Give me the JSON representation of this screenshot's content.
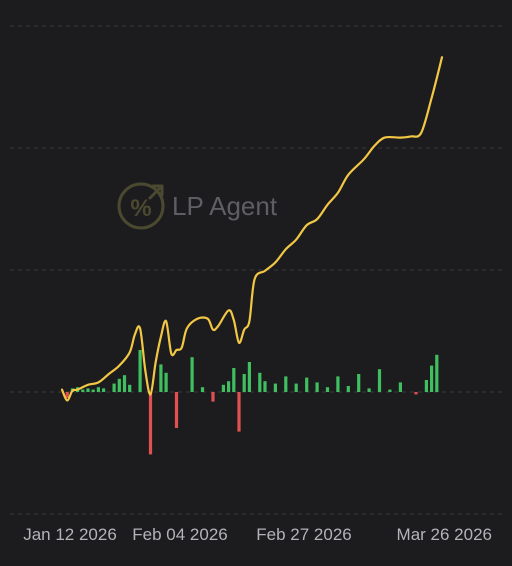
{
  "watermark": {
    "text": "LP Agent",
    "icon": "percent-trend-icon",
    "color": "#4b4a30"
  },
  "colors": {
    "background": "#1c1c1e",
    "line": "#f2c744",
    "positive_bar": "#3fbf5f",
    "negative_bar": "#e05252",
    "grid": "#3a3a3c",
    "tick_text": "#b3b3b8"
  },
  "chart_data": {
    "type": "line",
    "x_axis": {
      "type": "date",
      "tick_labels": [
        "Jan 12 2026",
        "Feb 04 2026",
        "Feb 27 2026",
        "Mar 26 2026"
      ]
    },
    "y_axis": {
      "labels_shown": false,
      "grid": "dashed horizontal",
      "zero_line": true
    },
    "series": [
      {
        "kind": "line",
        "color": "#f2c744",
        "points": [
          [
            "2026-01-12",
            0.2
          ],
          [
            "2026-01-13",
            -0.7
          ],
          [
            "2026-01-14",
            0.1
          ],
          [
            "2026-01-15",
            0.2
          ],
          [
            "2026-01-17",
            0.6
          ],
          [
            "2026-01-19",
            0.8
          ],
          [
            "2026-01-21",
            1.5
          ],
          [
            "2026-01-23",
            2.2
          ],
          [
            "2026-01-25",
            3.3
          ],
          [
            "2026-01-26",
            4.8
          ],
          [
            "2026-01-27",
            5.3
          ],
          [
            "2026-01-28",
            1.8
          ],
          [
            "2026-01-29",
            -0.2
          ],
          [
            "2026-01-30",
            2.5
          ],
          [
            "2026-01-31",
            4.6
          ],
          [
            "2026-02-01",
            5.9
          ],
          [
            "2026-02-02",
            3.2
          ],
          [
            "2026-02-03",
            3.5
          ],
          [
            "2026-02-04",
            3.7
          ],
          [
            "2026-02-05",
            5.3
          ],
          [
            "2026-02-07",
            6.1
          ],
          [
            "2026-02-09",
            6.1
          ],
          [
            "2026-02-10",
            5.2
          ],
          [
            "2026-02-11",
            5.5
          ],
          [
            "2026-02-13",
            6.8
          ],
          [
            "2026-02-14",
            6.0
          ],
          [
            "2026-02-15",
            4.1
          ],
          [
            "2026-02-16",
            5.2
          ],
          [
            "2026-02-17",
            5.9
          ],
          [
            "2026-02-18",
            9.4
          ],
          [
            "2026-02-20",
            10.1
          ],
          [
            "2026-02-22",
            10.8
          ],
          [
            "2026-02-24",
            11.9
          ],
          [
            "2026-02-26",
            12.7
          ],
          [
            "2026-02-28",
            13.9
          ],
          [
            "2026-03-02",
            14.4
          ],
          [
            "2026-03-04",
            15.6
          ],
          [
            "2026-03-06",
            16.6
          ],
          [
            "2026-03-08",
            18.1
          ],
          [
            "2026-03-11",
            19.4
          ],
          [
            "2026-03-13",
            20.5
          ],
          [
            "2026-03-15",
            21.2
          ],
          [
            "2026-03-18",
            21.2
          ],
          [
            "2026-03-20",
            21.3
          ],
          [
            "2026-03-22",
            21.6
          ],
          [
            "2026-03-24",
            24.5
          ],
          [
            "2026-03-26",
            27.9
          ]
        ]
      },
      {
        "kind": "bar",
        "positive_color": "#3fbf5f",
        "negative_color": "#e05252",
        "points": [
          [
            "2026-01-13",
            -0.5
          ],
          [
            "2026-01-14",
            0.3
          ],
          [
            "2026-01-15",
            0.4
          ],
          [
            "2026-01-16",
            0.2
          ],
          [
            "2026-01-17",
            0.3
          ],
          [
            "2026-01-18",
            0.2
          ],
          [
            "2026-01-19",
            0.4
          ],
          [
            "2026-01-20",
            0.3
          ],
          [
            "2026-01-22",
            0.7
          ],
          [
            "2026-01-23",
            1.1
          ],
          [
            "2026-01-24",
            1.4
          ],
          [
            "2026-01-25",
            0.6
          ],
          [
            "2026-01-27",
            3.5
          ],
          [
            "2026-01-29",
            -5.2
          ],
          [
            "2026-01-31",
            2.3
          ],
          [
            "2026-02-01",
            1.6
          ],
          [
            "2026-02-03",
            -3.0
          ],
          [
            "2026-02-06",
            2.9
          ],
          [
            "2026-02-08",
            0.4
          ],
          [
            "2026-02-10",
            -0.8
          ],
          [
            "2026-02-12",
            0.6
          ],
          [
            "2026-02-13",
            0.9
          ],
          [
            "2026-02-14",
            2.0
          ],
          [
            "2026-02-15",
            -3.3
          ],
          [
            "2026-02-16",
            1.5
          ],
          [
            "2026-02-17",
            2.5
          ],
          [
            "2026-02-19",
            1.6
          ],
          [
            "2026-02-20",
            0.9
          ],
          [
            "2026-02-22",
            0.7
          ],
          [
            "2026-02-24",
            1.3
          ],
          [
            "2026-02-26",
            0.7
          ],
          [
            "2026-02-28",
            1.2
          ],
          [
            "2026-03-02",
            0.8
          ],
          [
            "2026-03-04",
            0.4
          ],
          [
            "2026-03-06",
            1.3
          ],
          [
            "2026-03-08",
            0.5
          ],
          [
            "2026-03-10",
            1.5
          ],
          [
            "2026-03-12",
            0.3
          ],
          [
            "2026-03-14",
            1.9
          ],
          [
            "2026-03-16",
            0.2
          ],
          [
            "2026-03-18",
            0.8
          ],
          [
            "2026-03-21",
            -0.2
          ],
          [
            "2026-03-23",
            1.0
          ],
          [
            "2026-03-24",
            2.2
          ],
          [
            "2026-03-25",
            3.1
          ]
        ]
      }
    ]
  }
}
